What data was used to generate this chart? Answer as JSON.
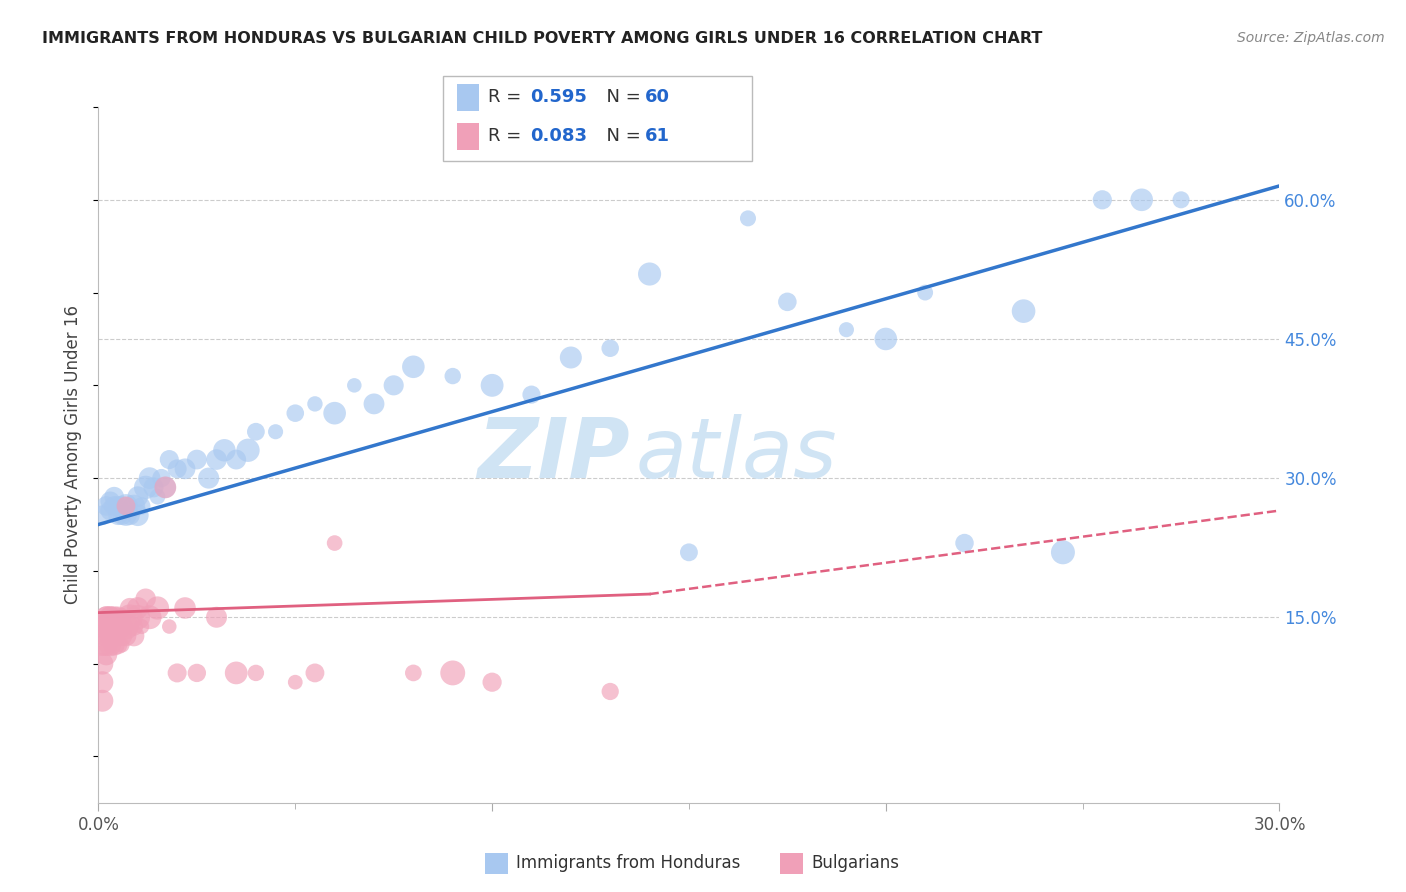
{
  "title": "IMMIGRANTS FROM HONDURAS VS BULGARIAN CHILD POVERTY AMONG GIRLS UNDER 16 CORRELATION CHART",
  "source": "Source: ZipAtlas.com",
  "ylabel": "Child Poverty Among Girls Under 16",
  "xlim": [
    0.0,
    0.3
  ],
  "ylim": [
    -0.05,
    0.7
  ],
  "y_ticks_right": [
    0.15,
    0.3,
    0.45,
    0.6
  ],
  "y_tick_labels_right": [
    "15.0%",
    "30.0%",
    "45.0%",
    "60.0%"
  ],
  "legend_r1": "0.595",
  "legend_n1": "60",
  "legend_r2": "0.083",
  "legend_n2": "61",
  "series1_color": "#A8C8F0",
  "series2_color": "#F0A0B8",
  "line1_color": "#3377CC",
  "line2_solid_color": "#E06080",
  "line2_dash_color": "#E06080",
  "watermark_color": "#D0E4F4",
  "background_color": "#FFFFFF",
  "series1_x": [
    0.001,
    0.002,
    0.003,
    0.003,
    0.004,
    0.004,
    0.005,
    0.005,
    0.006,
    0.006,
    0.007,
    0.007,
    0.008,
    0.008,
    0.009,
    0.01,
    0.01,
    0.011,
    0.012,
    0.013,
    0.014,
    0.015,
    0.016,
    0.017,
    0.018,
    0.02,
    0.022,
    0.025,
    0.028,
    0.03,
    0.032,
    0.035,
    0.038,
    0.04,
    0.045,
    0.05,
    0.055,
    0.06,
    0.065,
    0.07,
    0.075,
    0.08,
    0.09,
    0.1,
    0.11,
    0.12,
    0.13,
    0.14,
    0.15,
    0.165,
    0.175,
    0.19,
    0.2,
    0.21,
    0.22,
    0.235,
    0.245,
    0.255,
    0.265,
    0.275
  ],
  "series1_y": [
    0.26,
    0.27,
    0.265,
    0.275,
    0.27,
    0.28,
    0.26,
    0.27,
    0.26,
    0.27,
    0.26,
    0.27,
    0.27,
    0.26,
    0.27,
    0.28,
    0.26,
    0.27,
    0.29,
    0.3,
    0.29,
    0.28,
    0.3,
    0.29,
    0.32,
    0.31,
    0.31,
    0.32,
    0.3,
    0.32,
    0.33,
    0.32,
    0.33,
    0.35,
    0.35,
    0.37,
    0.38,
    0.37,
    0.4,
    0.38,
    0.4,
    0.42,
    0.41,
    0.4,
    0.39,
    0.43,
    0.44,
    0.52,
    0.22,
    0.58,
    0.49,
    0.46,
    0.45,
    0.5,
    0.23,
    0.48,
    0.22,
    0.6,
    0.6,
    0.6
  ],
  "series2_x": [
    0.001,
    0.001,
    0.001,
    0.001,
    0.001,
    0.002,
    0.002,
    0.002,
    0.002,
    0.002,
    0.002,
    0.002,
    0.003,
    0.003,
    0.003,
    0.003,
    0.003,
    0.003,
    0.004,
    0.004,
    0.004,
    0.004,
    0.004,
    0.005,
    0.005,
    0.005,
    0.005,
    0.005,
    0.005,
    0.006,
    0.006,
    0.006,
    0.006,
    0.007,
    0.007,
    0.007,
    0.008,
    0.008,
    0.009,
    0.009,
    0.01,
    0.01,
    0.011,
    0.012,
    0.013,
    0.015,
    0.017,
    0.018,
    0.02,
    0.022,
    0.025,
    0.03,
    0.035,
    0.04,
    0.05,
    0.055,
    0.06,
    0.08,
    0.09,
    0.1,
    0.13
  ],
  "series2_y": [
    0.14,
    0.12,
    0.1,
    0.08,
    0.06,
    0.15,
    0.14,
    0.13,
    0.12,
    0.11,
    0.14,
    0.15,
    0.15,
    0.14,
    0.13,
    0.12,
    0.14,
    0.15,
    0.15,
    0.14,
    0.13,
    0.12,
    0.14,
    0.15,
    0.14,
    0.13,
    0.12,
    0.14,
    0.15,
    0.14,
    0.13,
    0.15,
    0.12,
    0.14,
    0.27,
    0.13,
    0.15,
    0.16,
    0.14,
    0.13,
    0.16,
    0.15,
    0.14,
    0.17,
    0.15,
    0.16,
    0.29,
    0.14,
    0.09,
    0.16,
    0.09,
    0.15,
    0.09,
    0.09,
    0.08,
    0.09,
    0.23,
    0.09,
    0.09,
    0.08,
    0.07
  ],
  "line1_x0": 0.0,
  "line1_y0": 0.25,
  "line1_x1": 0.3,
  "line1_y1": 0.615,
  "line2s_x0": 0.0,
  "line2s_y0": 0.155,
  "line2s_x1": 0.14,
  "line2s_y1": 0.175,
  "line2d_x0": 0.14,
  "line2d_y0": 0.175,
  "line2d_x1": 0.3,
  "line2d_y1": 0.265
}
